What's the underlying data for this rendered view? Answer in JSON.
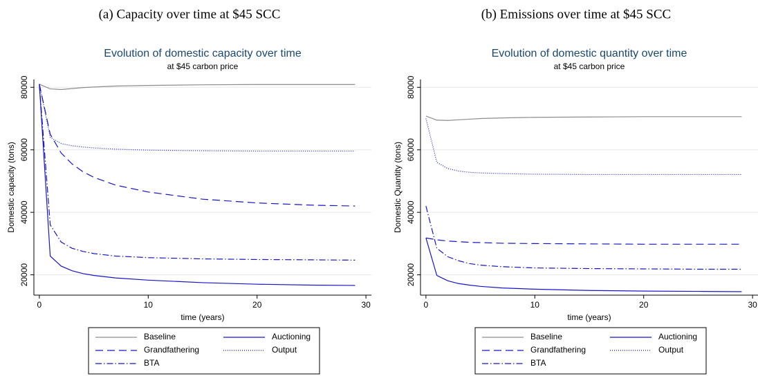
{
  "chart_data": [
    {
      "type": "line",
      "caption": "(a) Capacity over time at $45 SCC",
      "title": "Evolution of domestic capacity over time",
      "subtitle": "at $45 carbon price",
      "x_label": "time (years)",
      "y_label": "Domestic capacity (tons)",
      "x": [
        0,
        1,
        2,
        3,
        4,
        5,
        7,
        10,
        15,
        20,
        25,
        29
      ],
      "xlim": [
        -0.5,
        30.5
      ],
      "xticks": [
        0,
        10,
        20,
        30
      ],
      "ylim": [
        13500,
        82500
      ],
      "yticks": [
        20000,
        40000,
        60000,
        80000
      ],
      "grid": true,
      "series": [
        {
          "name": "Baseline",
          "color": "#8c8c8c",
          "dash": "solid",
          "values": [
            81000,
            79500,
            79300,
            79600,
            79900,
            80100,
            80400,
            80600,
            80800,
            80900,
            80900,
            80900
          ]
        },
        {
          "name": "Auctioning",
          "color": "#1515c8",
          "dash": "solid",
          "values": [
            81000,
            26000,
            22800,
            21300,
            20400,
            19800,
            19000,
            18300,
            17500,
            17000,
            16700,
            16600
          ]
        },
        {
          "name": "Grandfathering",
          "color": "#1515c8",
          "dash": "dash",
          "values": [
            81000,
            65000,
            59000,
            55500,
            53000,
            51200,
            48700,
            46500,
            44200,
            43000,
            42300,
            42000
          ]
        },
        {
          "name": "Output",
          "color": "#1515c8",
          "dash": "dot",
          "values": [
            81000,
            64000,
            62000,
            61300,
            60900,
            60600,
            60200,
            59900,
            59700,
            59600,
            59600,
            59600
          ]
        },
        {
          "name": "BTA",
          "color": "#1515c8",
          "dash": "dashdot",
          "values": [
            81000,
            36000,
            30500,
            28500,
            27500,
            26800,
            26000,
            25500,
            25100,
            24900,
            24800,
            24700
          ]
        }
      ]
    },
    {
      "type": "line",
      "caption": "(b) Emissions over time at $45 SCC",
      "title": "Evolution of domestic quantity over time",
      "subtitle": "at $45 carbon price",
      "x_label": "time (years)",
      "y_label": "Domestic Quantity (tons)",
      "x": [
        0,
        1,
        2,
        3,
        4,
        5,
        7,
        10,
        15,
        20,
        25,
        29
      ],
      "xlim": [
        -0.5,
        30.5
      ],
      "xticks": [
        0,
        10,
        20,
        30
      ],
      "ylim": [
        13500,
        82500
      ],
      "yticks": [
        20000,
        40000,
        60000,
        80000
      ],
      "grid": true,
      "series": [
        {
          "name": "Baseline",
          "color": "#8c8c8c",
          "dash": "solid",
          "values": [
            70800,
            69500,
            69400,
            69600,
            69800,
            70000,
            70200,
            70400,
            70500,
            70600,
            70600,
            70600
          ]
        },
        {
          "name": "Auctioning",
          "color": "#1515c8",
          "dash": "solid",
          "values": [
            31800,
            19800,
            18100,
            17200,
            16700,
            16300,
            15800,
            15400,
            15000,
            14800,
            14700,
            14600
          ]
        },
        {
          "name": "Grandfathering",
          "color": "#1515c8",
          "dash": "dash",
          "values": [
            31800,
            31200,
            30800,
            30600,
            30400,
            30300,
            30100,
            30000,
            29900,
            29800,
            29800,
            29800
          ]
        },
        {
          "name": "Output",
          "color": "#1515c8",
          "dash": "dot",
          "values": [
            70000,
            56000,
            54000,
            53200,
            52800,
            52600,
            52400,
            52200,
            52100,
            52100,
            52100,
            52100
          ]
        },
        {
          "name": "BTA",
          "color": "#1515c8",
          "dash": "dashdot",
          "values": [
            42000,
            28500,
            25800,
            24500,
            23600,
            23100,
            22600,
            22200,
            22000,
            21900,
            21800,
            21800
          ]
        }
      ]
    }
  ]
}
